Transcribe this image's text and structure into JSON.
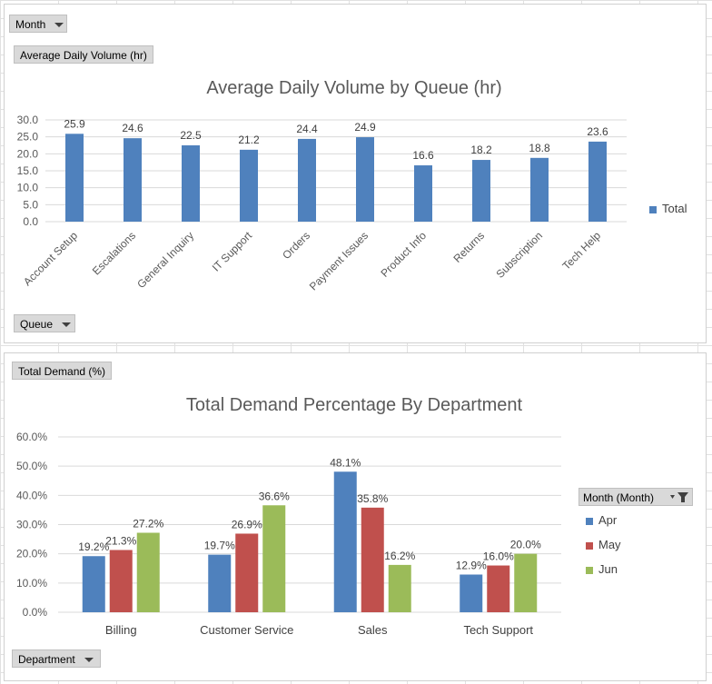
{
  "chart1": {
    "filter_button": "Month",
    "value_button": "Average Daily Volume (hr)",
    "axis_button": "Queue",
    "legend_label": "Total",
    "color": "#4f81bd"
  },
  "chart2": {
    "value_button": "Total Demand (%)",
    "axis_button": "Department",
    "legend_header": "Month (Month)",
    "colors": [
      "#4f81bd",
      "#c0504d",
      "#9bbb59"
    ]
  },
  "chart_data": [
    {
      "type": "bar",
      "title": "Average Daily Volume by Queue (hr)",
      "categories": [
        "Account Setup",
        "Escalations",
        "General Inquiry",
        "IT Support",
        "Orders",
        "Payment Issues",
        "Product Info",
        "Returns",
        "Subscription",
        "Tech Help"
      ],
      "series": [
        {
          "name": "Total",
          "values": [
            25.9,
            24.6,
            22.5,
            21.2,
            24.4,
            24.9,
            16.6,
            18.2,
            18.8,
            23.6
          ]
        }
      ],
      "yticks": [
        "0.0",
        "5.0",
        "10.0",
        "15.0",
        "20.0",
        "25.0",
        "30.0"
      ],
      "ylim": [
        0,
        30
      ],
      "legend_position": "right",
      "grid": true
    },
    {
      "type": "bar",
      "title": "Total Demand Percentage By Department",
      "categories": [
        "Billing",
        "Customer Service",
        "Sales",
        "Tech Support"
      ],
      "series": [
        {
          "name": "Apr",
          "values": [
            19.2,
            19.7,
            48.1,
            12.9
          ]
        },
        {
          "name": "May",
          "values": [
            21.3,
            26.9,
            35.8,
            16.0
          ]
        },
        {
          "name": "Jun",
          "values": [
            27.2,
            36.6,
            16.2,
            20.0
          ]
        }
      ],
      "yticks": [
        "0.0%",
        "10.0%",
        "20.0%",
        "30.0%",
        "40.0%",
        "50.0%",
        "60.0%"
      ],
      "ylim": [
        0,
        60
      ],
      "legend_position": "right",
      "grid": true
    }
  ]
}
